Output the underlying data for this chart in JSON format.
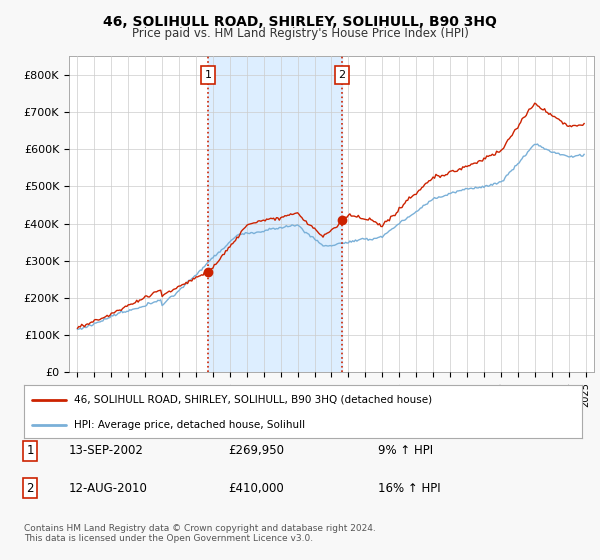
{
  "title": "46, SOLIHULL ROAD, SHIRLEY, SOLIHULL, B90 3HQ",
  "subtitle": "Price paid vs. HM Land Registry's House Price Index (HPI)",
  "fig_background": "#f8f8f8",
  "plot_background": "#ffffff",
  "highlight_color": "#ddeeff",
  "ylim": [
    0,
    850000
  ],
  "yticks": [
    0,
    100000,
    200000,
    300000,
    400000,
    500000,
    600000,
    700000,
    800000
  ],
  "ytick_labels": [
    "£0",
    "£100K",
    "£200K",
    "£300K",
    "£400K",
    "£500K",
    "£600K",
    "£700K",
    "£800K"
  ],
  "xlim_left": 1994.5,
  "xlim_right": 2025.5,
  "sale1_date": 2002.71,
  "sale1_price": 269950,
  "sale1_label": "1",
  "sale2_date": 2010.62,
  "sale2_price": 410000,
  "sale2_label": "2",
  "legend_line1": "46, SOLIHULL ROAD, SHIRLEY, SOLIHULL, B90 3HQ (detached house)",
  "legend_line2": "HPI: Average price, detached house, Solihull",
  "table_row1_num": "1",
  "table_row1_date": "13-SEP-2002",
  "table_row1_price": "£269,950",
  "table_row1_hpi": "9% ↑ HPI",
  "table_row2_num": "2",
  "table_row2_date": "12-AUG-2010",
  "table_row2_price": "£410,000",
  "table_row2_hpi": "16% ↑ HPI",
  "footer": "Contains HM Land Registry data © Crown copyright and database right 2024.\nThis data is licensed under the Open Government Licence v3.0.",
  "hpi_color": "#7ab0d8",
  "price_color": "#cc2200",
  "vline_color": "#cc2200",
  "grid_color": "#cccccc",
  "label_box_color": "#cc2200"
}
